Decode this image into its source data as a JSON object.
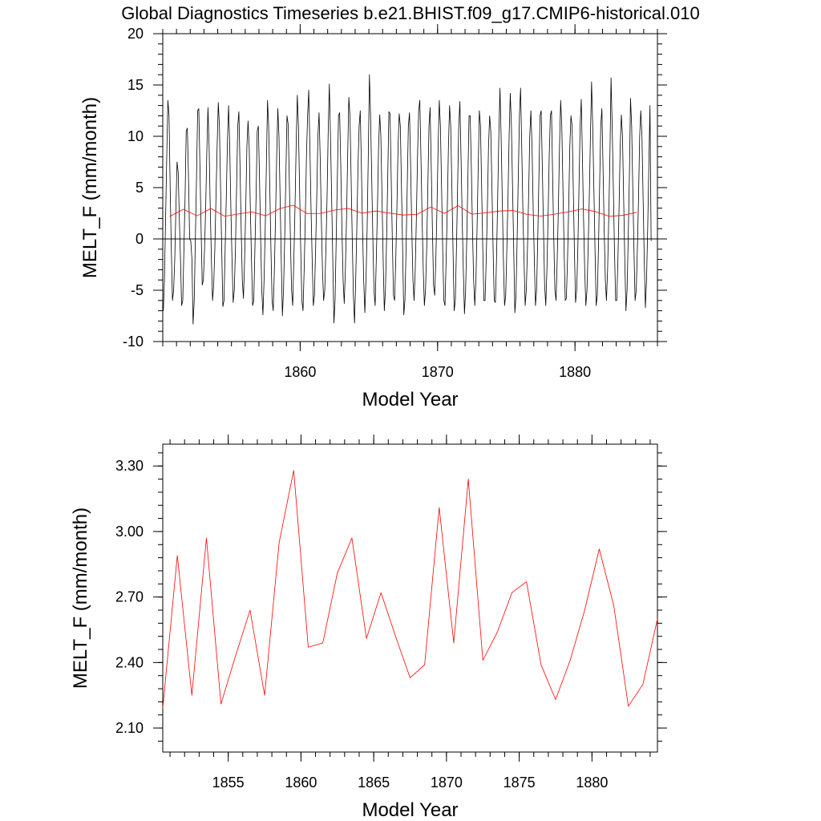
{
  "figure": {
    "title": "Global Diagnostics Timeseries b.e21.BHIST.f09_g17.CMIP6-historical.010"
  },
  "chart_data": [
    {
      "type": "line",
      "xlabel": "Model Year",
      "ylabel": "MELT_F (mm/month)",
      "xlim": [
        1850,
        1886
      ],
      "ylim": [
        -10,
        20
      ],
      "y_ticks": [
        -10,
        -5,
        0,
        5,
        10,
        15,
        20
      ],
      "x_ticks": [
        1860,
        1870,
        1880
      ],
      "zero_line": true,
      "grid": false,
      "series": [
        {
          "color": "#000000",
          "kind": "monthly",
          "x_start": 1850.04,
          "x_step": 0.0833333,
          "values": [
            -7.0,
            -4.0,
            2.0,
            8.0,
            13.5,
            12.0,
            5.0,
            -1.0,
            -6.0,
            -5.0,
            -2.0,
            3.0,
            7.5,
            6.5,
            2.0,
            -2.0,
            -6.5,
            -6.0,
            -1.0,
            4.0,
            10.5,
            10.8,
            6.0,
            0.0,
            -0.2,
            -2.0,
            -8.3,
            -6.0,
            0.0,
            6.0,
            12.5,
            12.7,
            7.0,
            1.0,
            -4.5,
            -4.0,
            -1.0,
            3.0,
            8.5,
            12.8,
            9.0,
            3.0,
            -2.0,
            -6.0,
            -4.5,
            -1.0,
            4.0,
            9.0,
            13.3,
            11.0,
            5.0,
            -1.0,
            -6.6,
            -6.0,
            -1.0,
            4.0,
            9.5,
            13.0,
            9.0,
            3.0,
            -2.0,
            -6.2,
            -5.0,
            -1.0,
            5.0,
            11.0,
            12.4,
            7.0,
            1.0,
            -4.0,
            -5.8,
            -2.0,
            3.0,
            9.0,
            11.5,
            9.0,
            3.0,
            -2.0,
            -6.5,
            -6.0,
            -1.0,
            4.0,
            10.5,
            11.0,
            6.0,
            0.0,
            -5.0,
            -7.4,
            -4.0,
            1.0,
            7.0,
            13.5,
            11.0,
            5.0,
            -1.0,
            -6.0,
            -7.0,
            -3.0,
            2.0,
            8.0,
            12.7,
            10.0,
            4.0,
            -2.0,
            -7.5,
            -5.0,
            0.0,
            6.0,
            12.0,
            11.2,
            6.0,
            0.0,
            -5.0,
            -6.5,
            -2.0,
            3.0,
            9.0,
            14.0,
            11.0,
            5.0,
            -1.0,
            -6.0,
            -7.0,
            -3.0,
            2.0,
            8.0,
            12.0,
            14.5,
            9.0,
            3.0,
            -2.0,
            -6.5,
            -5.5,
            -1.0,
            4.0,
            10.0,
            12.3,
            8.0,
            2.0,
            -3.0,
            -6.0,
            -5.0,
            -1.0,
            4.0,
            10.5,
            15.1,
            10.0,
            4.0,
            -2.0,
            -8.2,
            -6.0,
            0.0,
            6.0,
            12.0,
            12.3,
            7.0,
            1.0,
            -4.0,
            -6.3,
            -3.0,
            2.0,
            8.0,
            13.8,
            12.0,
            6.0,
            0.0,
            -5.5,
            -8.2,
            -4.0,
            1.0,
            7.0,
            11.0,
            12.5,
            7.0,
            1.0,
            -4.0,
            -7.2,
            -4.0,
            1.0,
            8.0,
            16.0,
            12.0,
            6.0,
            0.0,
            -5.0,
            -6.5,
            -2.0,
            3.0,
            9.0,
            12.1,
            10.0,
            4.0,
            -2.0,
            -7.0,
            -5.0,
            0.0,
            6.0,
            12.4,
            12.2,
            6.0,
            0.0,
            -5.5,
            -6.0,
            -2.0,
            3.0,
            9.0,
            12.2,
            11.0,
            5.0,
            -1.0,
            -7.4,
            -6.0,
            -1.0,
            5.0,
            11.0,
            12.3,
            7.0,
            1.0,
            -4.0,
            -6.0,
            -3.0,
            2.0,
            8.0,
            12.5,
            13.5,
            8.0,
            2.0,
            -3.0,
            -6.5,
            -5.0,
            -1.0,
            5.0,
            11.0,
            12.8,
            7.0,
            1.0,
            -4.5,
            -5.5,
            -2.0,
            3.0,
            9.0,
            13.5,
            11.0,
            5.0,
            -1.0,
            -6.0,
            -6.5,
            -2.0,
            3.0,
            9.0,
            13.0,
            11.0,
            5.0,
            -1.0,
            -7.0,
            -6.0,
            -1.0,
            5.0,
            11.0,
            13.4,
            8.0,
            2.0,
            -3.0,
            -7.3,
            -5.0,
            0.0,
            6.0,
            12.0,
            12.0,
            7.0,
            1.0,
            -4.0,
            -6.5,
            -4.0,
            1.0,
            7.0,
            12.5,
            11.0,
            5.0,
            -1.0,
            -6.0,
            -6.0,
            -2.0,
            3.0,
            9.0,
            12.0,
            10.5,
            5.0,
            -1.0,
            -6.0,
            -6.2,
            -2.0,
            4.0,
            10.0,
            14.7,
            10.0,
            4.0,
            -2.0,
            -6.5,
            -5.5,
            -1.0,
            4.0,
            10.0,
            14.2,
            11.0,
            5.0,
            -1.0,
            -7.2,
            -5.5,
            0.0,
            6.0,
            12.0,
            14.7,
            9.0,
            3.0,
            -2.0,
            -6.5,
            -5.0,
            -1.0,
            4.0,
            10.0,
            12.5,
            9.0,
            3.0,
            -2.0,
            -6.5,
            -5.0,
            0.0,
            6.0,
            12.0,
            12.5,
            7.0,
            1.0,
            -4.5,
            -6.5,
            -3.0,
            2.0,
            8.0,
            12.0,
            12.5,
            6.0,
            0.0,
            -5.0,
            -6.0,
            -2.0,
            3.0,
            9.0,
            13.5,
            11.0,
            5.0,
            -1.0,
            -6.0,
            -5.8,
            -2.0,
            3.0,
            9.0,
            12.0,
            11.0,
            5.0,
            -1.0,
            -6.2,
            -5.0,
            -1.0,
            5.0,
            11.0,
            13.6,
            8.0,
            2.0,
            -3.0,
            -6.5,
            -5.0,
            -1.0,
            4.0,
            10.0,
            15.3,
            11.0,
            5.0,
            -1.0,
            -6.5,
            -5.5,
            -1.0,
            5.0,
            11.0,
            12.7,
            7.0,
            1.0,
            -4.0,
            -6.0,
            -3.0,
            2.0,
            8.0,
            15.7,
            11.0,
            5.0,
            -1.0,
            -6.0,
            -6.0,
            -2.0,
            3.0,
            9.0,
            12.1,
            10.0,
            4.0,
            -2.0,
            -7.0,
            -5.0,
            0.0,
            6.0,
            13.7,
            11.0,
            5.0,
            -1.0,
            -6.0,
            -5.0,
            -1.0,
            4.0,
            10.0,
            12.5,
            10.0,
            4.0,
            -2.0,
            -6.7,
            -4.0,
            1.0,
            7.0,
            13.0,
            -0.2
          ]
        },
        {
          "color": "#ff0000",
          "kind": "annual",
          "x": [
            1850.5,
            1851.5,
            1852.5,
            1853.5,
            1854.5,
            1855.5,
            1856.5,
            1857.5,
            1858.5,
            1859.5,
            1860.5,
            1861.5,
            1862.5,
            1863.5,
            1864.5,
            1865.5,
            1866.5,
            1867.5,
            1868.5,
            1869.5,
            1870.5,
            1871.5,
            1872.5,
            1873.5,
            1874.5,
            1875.5,
            1876.5,
            1877.5,
            1878.5,
            1879.5,
            1880.5,
            1881.5,
            1882.5,
            1883.5,
            1884.5
          ],
          "values": [
            2.19,
            2.89,
            2.25,
            2.97,
            2.21,
            2.43,
            2.64,
            2.25,
            2.95,
            3.28,
            2.47,
            2.49,
            2.81,
            2.97,
            2.51,
            2.72,
            2.52,
            2.33,
            2.39,
            3.11,
            2.49,
            3.24,
            2.41,
            2.54,
            2.72,
            2.77,
            2.39,
            2.23,
            2.41,
            2.64,
            2.92,
            2.66,
            2.2,
            2.3,
            2.6
          ]
        }
      ]
    },
    {
      "type": "line",
      "xlabel": "Model Year",
      "ylabel": "MELT_F (mm/month)",
      "xlim": [
        1850.5,
        1884.5
      ],
      "ylim": [
        1.99,
        3.4
      ],
      "y_ticks": [
        2.1,
        2.4,
        2.7,
        3.0,
        3.3
      ],
      "y_tick_labels": [
        "2.10",
        "2.40",
        "2.70",
        "3.00",
        "3.30"
      ],
      "x_ticks": [
        1855,
        1860,
        1865,
        1870,
        1875,
        1880
      ],
      "grid": false,
      "series": [
        {
          "color": "#ff0000",
          "x": [
            1850.5,
            1851.5,
            1852.5,
            1853.5,
            1854.5,
            1855.5,
            1856.5,
            1857.5,
            1858.5,
            1859.5,
            1860.5,
            1861.5,
            1862.5,
            1863.5,
            1864.5,
            1865.5,
            1866.5,
            1867.5,
            1868.5,
            1869.5,
            1870.5,
            1871.5,
            1872.5,
            1873.5,
            1874.5,
            1875.5,
            1876.5,
            1877.5,
            1878.5,
            1879.5,
            1880.5,
            1881.5,
            1882.5,
            1883.5,
            1884.5
          ],
          "values": [
            2.19,
            2.89,
            2.25,
            2.97,
            2.21,
            2.43,
            2.64,
            2.25,
            2.95,
            3.28,
            2.47,
            2.49,
            2.81,
            2.97,
            2.51,
            2.72,
            2.52,
            2.33,
            2.39,
            3.11,
            2.49,
            3.24,
            2.41,
            2.54,
            2.72,
            2.77,
            2.39,
            2.23,
            2.41,
            2.64,
            2.92,
            2.66,
            2.2,
            2.3,
            2.6
          ]
        }
      ]
    }
  ]
}
